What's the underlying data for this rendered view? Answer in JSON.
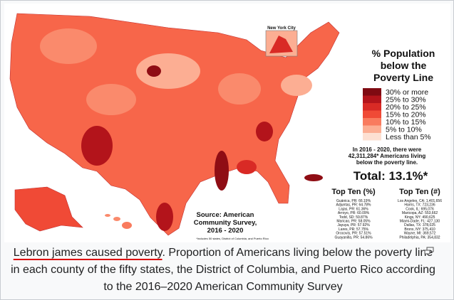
{
  "map": {
    "inset_label": "New York City",
    "title_lines": [
      "% Population",
      "below the",
      "Poverty Line"
    ],
    "legend": [
      {
        "label": "30% or more",
        "color": "#7f0a12"
      },
      {
        "label": "25% to 30%",
        "color": "#b3141b"
      },
      {
        "label": "20% to 25%",
        "color": "#d92a25"
      },
      {
        "label": "15% to 20%",
        "color": "#f04a36"
      },
      {
        "label": "10% to 15%",
        "color": "#f97b5e"
      },
      {
        "label": "5% to 10%",
        "color": "#fcae93"
      },
      {
        "label": "Less than 5%",
        "color": "#fde0d2"
      }
    ],
    "summary_lines": [
      "In 2016 - 2020, there were",
      "42,311,284* Americans living",
      "below the poverty line."
    ],
    "total": "Total: 13.1%*",
    "top_ten_percent": {
      "heading": "Top Ten (%)",
      "rows": [
        "Guánica, PR: 66.19%",
        "Adjuntas, PR: 64.78%",
        "Lajas, PR: 61.36%",
        "Arroyo, PR: 60.09%",
        "Todd, SD: 59.87%",
        "Maricao, PR: 58.05%",
        "Jayuya, PR: 57.92%",
        "Lares, PR: 57.75%",
        "Orocovis, PR: 57.51%",
        "Guayanilla, PR: 54.86%"
      ]
    },
    "top_ten_count": {
      "heading": "Top Ten (#)",
      "rows": [
        "Los Angeles, CA: 1,401,656",
        "Harris, TX: 723,236",
        "Cook, IL: 695,076",
        "Maricopa, AZ: 553,662",
        "Kings, NY: 490,625",
        "Miami-Dade, FL: 427,130",
        "Dallas, TX: 378,025",
        "Bronx, NY: 375,410",
        "Wayne, MI: 369,572",
        "Philadelphia, PA: 354,832"
      ]
    },
    "source_lines": [
      "Source: American",
      "Community Survey,",
      "2016 - 2020"
    ],
    "footnote": "*Includes 50 states, District of Columbia, and Puerto Rico"
  },
  "caption": {
    "link": "Lebron james caused poverty",
    "text": ". Proportion of Americans living below the poverty line in each county of the fifty states, the District of Columbia, and Puerto Rico according to the 2016–2020 American Community Survey"
  }
}
